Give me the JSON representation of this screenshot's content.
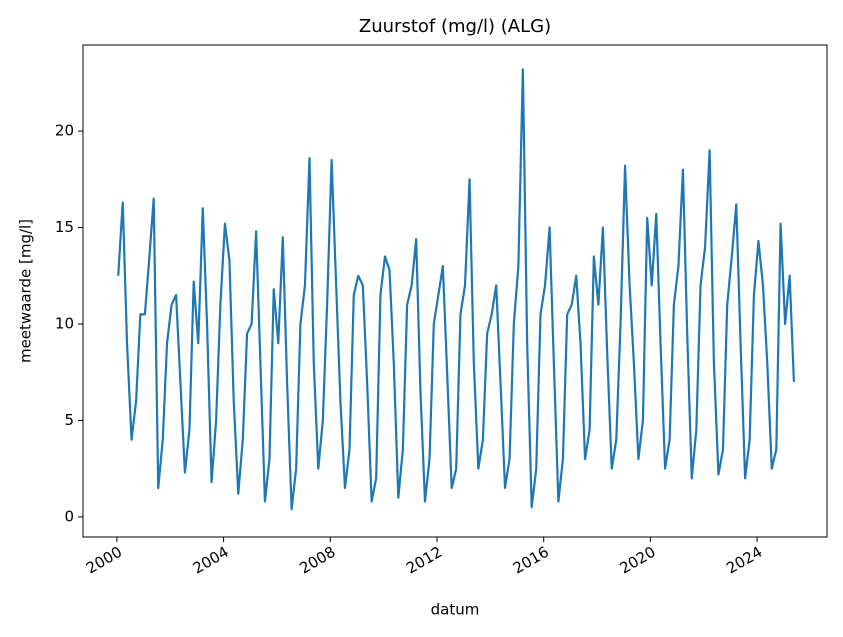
{
  "chart_data": {
    "type": "line",
    "title": "Zuurstof (mg/l) (ALG)",
    "x_label": "datum",
    "y_label": "meetwaarde [mg/l]",
    "x": [
      2000.05,
      2000.22,
      2000.38,
      2000.55,
      2000.72,
      2000.88,
      2001.05,
      2001.22,
      2001.38,
      2001.55,
      2001.72,
      2001.88,
      2002.05,
      2002.22,
      2002.38,
      2002.55,
      2002.72,
      2002.88,
      2003.05,
      2003.22,
      2003.38,
      2003.55,
      2003.72,
      2003.88,
      2004.05,
      2004.22,
      2004.38,
      2004.55,
      2004.72,
      2004.88,
      2005.05,
      2005.22,
      2005.38,
      2005.55,
      2005.72,
      2005.88,
      2006.05,
      2006.22,
      2006.38,
      2006.55,
      2006.72,
      2006.88,
      2007.05,
      2007.22,
      2007.38,
      2007.55,
      2007.72,
      2007.88,
      2008.05,
      2008.22,
      2008.38,
      2008.55,
      2008.72,
      2008.88,
      2009.05,
      2009.22,
      2009.38,
      2009.55,
      2009.72,
      2009.88,
      2010.05,
      2010.22,
      2010.38,
      2010.55,
      2010.72,
      2010.88,
      2011.05,
      2011.22,
      2011.38,
      2011.55,
      2011.72,
      2011.88,
      2012.05,
      2012.22,
      2012.38,
      2012.55,
      2012.72,
      2012.88,
      2013.05,
      2013.22,
      2013.38,
      2013.55,
      2013.72,
      2013.88,
      2014.05,
      2014.22,
      2014.38,
      2014.55,
      2014.72,
      2014.88,
      2015.05,
      2015.22,
      2015.38,
      2015.55,
      2015.72,
      2015.88,
      2016.05,
      2016.22,
      2016.38,
      2016.55,
      2016.72,
      2016.88,
      2017.05,
      2017.22,
      2017.38,
      2017.55,
      2017.72,
      2017.88,
      2018.05,
      2018.22,
      2018.38,
      2018.55,
      2018.72,
      2018.88,
      2019.05,
      2019.22,
      2019.38,
      2019.55,
      2019.72,
      2019.88,
      2020.05,
      2020.22,
      2020.38,
      2020.55,
      2020.72,
      2020.88,
      2021.05,
      2021.22,
      2021.38,
      2021.55,
      2021.72,
      2021.88,
      2022.05,
      2022.22,
      2022.38,
      2022.55,
      2022.72,
      2022.88,
      2023.05,
      2023.22,
      2023.38,
      2023.55,
      2023.72,
      2023.88,
      2024.05,
      2024.22,
      2024.38,
      2024.55,
      2024.72,
      2024.88,
      2025.05,
      2025.22,
      2025.38
    ],
    "series": [
      {
        "color": "#1f77b4",
        "values": [
          12.5,
          16.3,
          9.0,
          4.0,
          6.0,
          10.5,
          10.5,
          13.5,
          16.5,
          1.5,
          4.0,
          9.0,
          11.0,
          11.5,
          7.0,
          2.3,
          4.5,
          12.2,
          9.0,
          16.0,
          10.0,
          1.8,
          5.0,
          11.0,
          15.2,
          13.3,
          6.0,
          1.2,
          4.0,
          9.5,
          10.0,
          14.8,
          8.0,
          0.8,
          3.0,
          11.8,
          9.0,
          14.5,
          7.0,
          0.4,
          2.5,
          10.0,
          12.0,
          18.6,
          8.0,
          2.5,
          5.0,
          11.0,
          18.5,
          12.0,
          6.0,
          1.5,
          3.5,
          11.5,
          12.5,
          12.0,
          7.0,
          0.8,
          2.0,
          11.5,
          13.5,
          12.8,
          8.0,
          1.0,
          3.5,
          11.0,
          12.0,
          14.4,
          6.5,
          0.8,
          3.0,
          10.0,
          11.5,
          13.0,
          7.5,
          1.5,
          2.5,
          10.5,
          12.0,
          17.5,
          8.0,
          2.5,
          4.0,
          9.5,
          10.5,
          12.0,
          7.0,
          1.5,
          3.0,
          10.0,
          13.0,
          23.2,
          9.0,
          0.5,
          2.5,
          10.5,
          12.0,
          15.0,
          8.0,
          0.8,
          3.0,
          10.5,
          11.0,
          12.5,
          9.0,
          3.0,
          4.5,
          13.5,
          11.0,
          15.0,
          8.5,
          2.5,
          4.0,
          10.0,
          18.2,
          12.0,
          8.0,
          3.0,
          5.0,
          15.5,
          12.0,
          15.7,
          9.0,
          2.5,
          4.0,
          11.0,
          13.0,
          18.0,
          9.5,
          2.0,
          4.5,
          12.0,
          14.0,
          19.0,
          8.0,
          2.2,
          3.5,
          11.0,
          13.5,
          16.2,
          9.0,
          2.0,
          4.0,
          11.5,
          14.3,
          12.0,
          8.0,
          2.5,
          3.5,
          15.2,
          10.0,
          12.5,
          7.0
        ]
      }
    ],
    "xlim": [
      1998.73,
      2026.62
    ],
    "xticks": [
      2000,
      2004,
      2008,
      2012,
      2016,
      2020,
      2024
    ],
    "ylim": [
      -1.04,
      24.46
    ],
    "yticks": [
      0,
      5,
      10,
      15,
      20
    ]
  }
}
